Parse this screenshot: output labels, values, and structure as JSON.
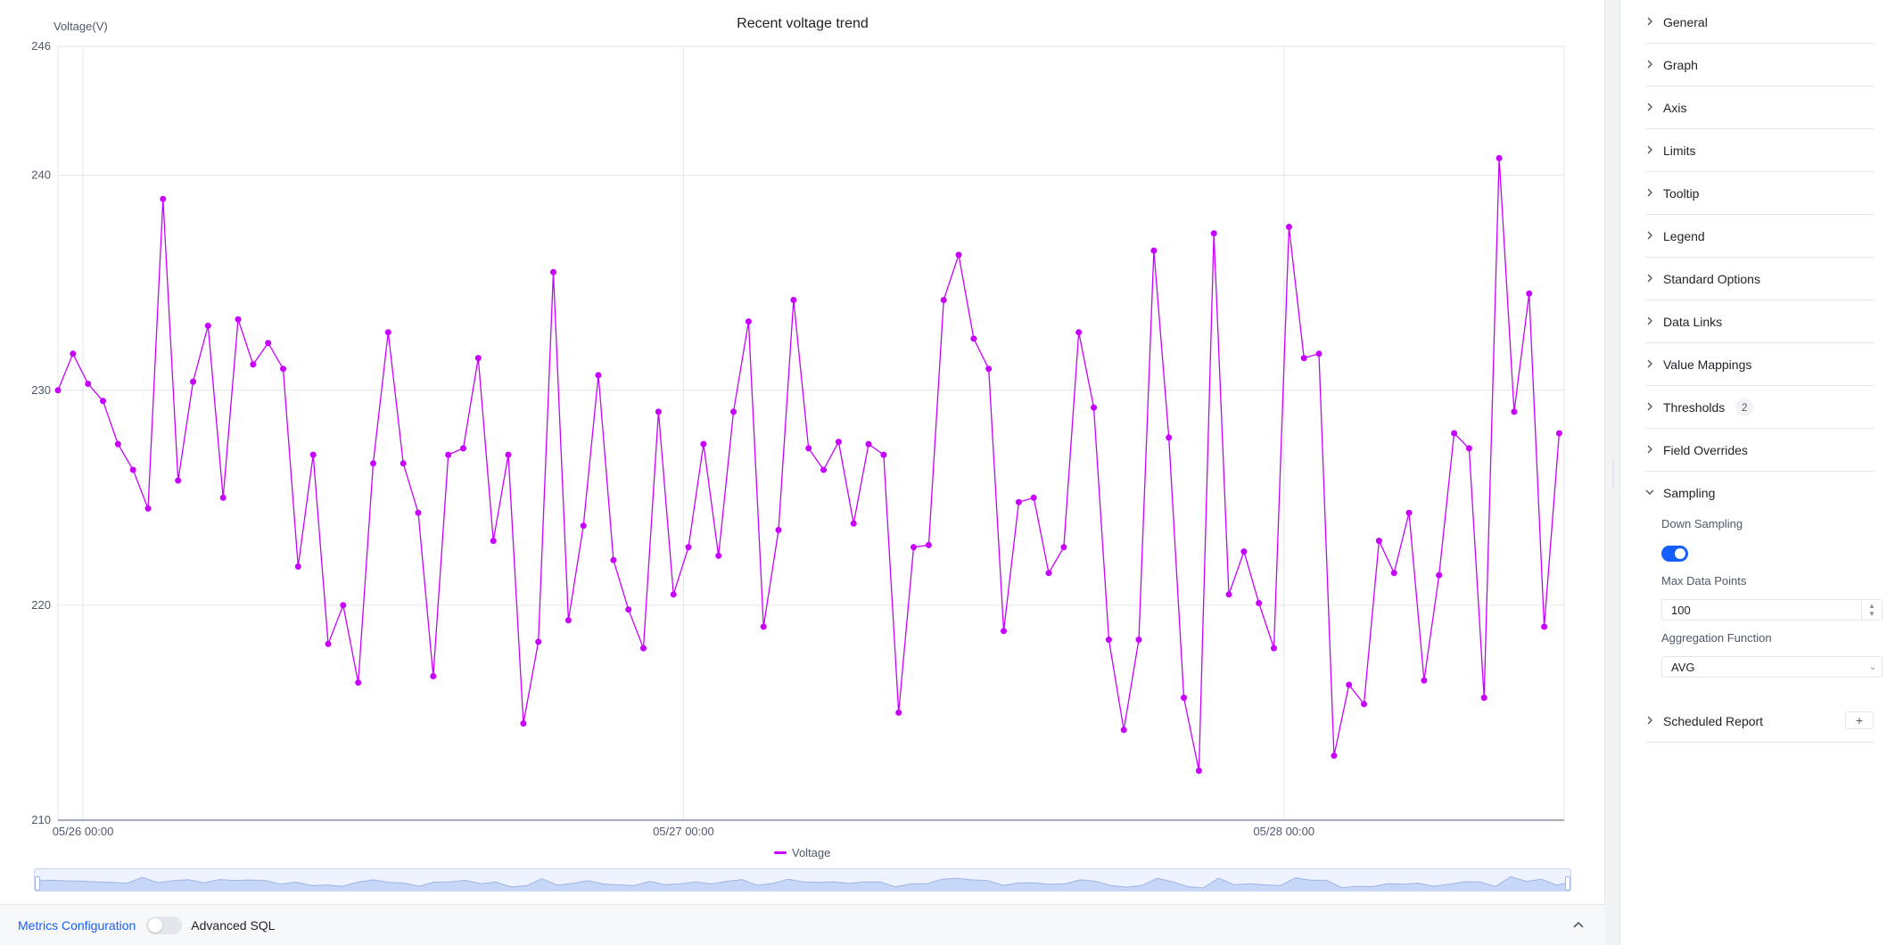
{
  "chart_data": {
    "type": "line",
    "title": "Recent voltage trend",
    "ylabel": "Voltage(V)",
    "xlabel": "",
    "ylim": [
      210,
      246
    ],
    "yticks": [
      210,
      220,
      230,
      240,
      246
    ],
    "xticks": [
      {
        "label": "05/26 00:00",
        "x": 0
      },
      {
        "label": "05/27 00:00",
        "x": 24
      },
      {
        "label": "05/28 00:00",
        "x": 48
      }
    ],
    "xlim": [
      -1,
      59.2
    ],
    "legend": "bottom-center",
    "grid": true,
    "series": [
      {
        "name": "Voltage",
        "color": "#c800ff",
        "interval_hours": 0.6,
        "start_x": -1,
        "values": [
          230.0,
          231.7,
          230.3,
          229.5,
          227.5,
          226.3,
          224.5,
          238.9,
          225.8,
          230.4,
          233.0,
          225.0,
          233.3,
          231.2,
          232.2,
          231.0,
          221.8,
          227.0,
          218.2,
          220.0,
          216.4,
          226.6,
          232.7,
          226.6,
          224.3,
          216.7,
          227.0,
          227.3,
          231.5,
          223.0,
          227.0,
          214.5,
          218.3,
          235.5,
          219.3,
          223.7,
          230.7,
          222.1,
          219.8,
          218.0,
          229.0,
          220.5,
          222.7,
          227.5,
          222.3,
          229.0,
          233.2,
          219.0,
          223.5,
          234.2,
          227.3,
          226.3,
          227.6,
          223.8,
          227.5,
          227.0,
          215.0,
          222.7,
          222.8,
          234.2,
          236.3,
          232.4,
          231.0,
          218.8,
          224.8,
          225.0,
          221.5,
          222.7,
          232.7,
          229.2,
          218.4,
          214.2,
          218.4,
          236.5,
          227.8,
          215.7,
          212.3,
          237.3,
          220.5,
          222.5,
          220.1,
          218.0,
          237.6,
          231.5,
          231.7,
          213.0,
          216.3,
          215.4,
          223.0,
          221.5,
          224.3,
          216.5,
          221.4,
          228.0,
          227.3,
          215.7,
          240.8,
          229.0,
          234.5,
          219.0,
          228.0
        ]
      }
    ]
  },
  "bottom_bar": {
    "metrics_link": "Metrics Configuration",
    "advanced_sql_label": "Advanced SQL"
  },
  "settings": {
    "sections": [
      {
        "label": "General",
        "expanded": false
      },
      {
        "label": "Graph",
        "expanded": false
      },
      {
        "label": "Axis",
        "expanded": false
      },
      {
        "label": "Limits",
        "expanded": false
      },
      {
        "label": "Tooltip",
        "expanded": false
      },
      {
        "label": "Legend",
        "expanded": false
      },
      {
        "label": "Standard Options",
        "expanded": false
      },
      {
        "label": "Data Links",
        "expanded": false
      },
      {
        "label": "Value Mappings",
        "expanded": false
      },
      {
        "label": "Thresholds",
        "expanded": false,
        "badge": "2"
      },
      {
        "label": "Field Overrides",
        "expanded": false
      },
      {
        "label": "Sampling",
        "expanded": true
      }
    ],
    "sampling": {
      "down_sampling_label": "Down Sampling",
      "down_sampling_on": true,
      "max_points_label": "Max Data Points",
      "max_points_value": "100",
      "aggregation_label": "Aggregation Function",
      "aggregation_value": "AVG"
    },
    "scheduled_report_label": "Scheduled Report"
  },
  "icons": {
    "collapsed": "chevron-right-icon",
    "expanded": "chevron-down-icon",
    "panel_toggle": "chevron-up-icon",
    "add": "plus-icon"
  },
  "colors": {
    "series": "#c800ff",
    "accent": "#165dff"
  }
}
